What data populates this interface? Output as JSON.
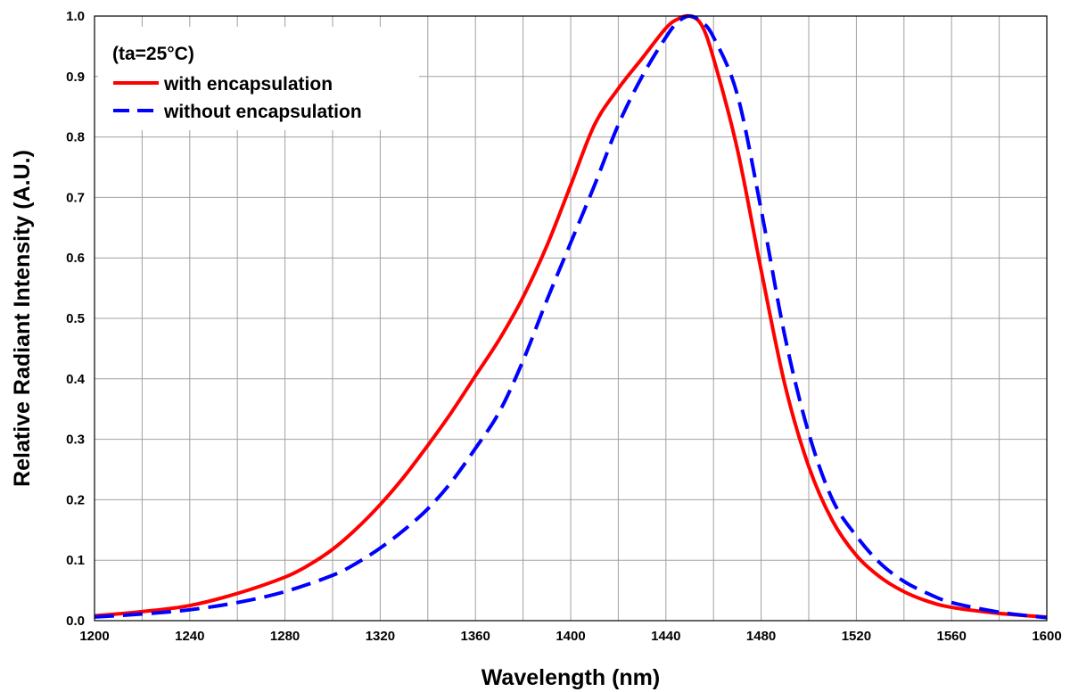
{
  "chart_data": {
    "type": "line",
    "title": "",
    "xlabel": "Wavelength (nm)",
    "ylabel": "Relative Radiant Intensity (A.U.)",
    "xlim": [
      1200,
      1600
    ],
    "ylim": [
      0,
      1.0
    ],
    "x_ticks": [
      "1200",
      "1240",
      "1280",
      "1320",
      "1360",
      "1400",
      "1440",
      "1480",
      "1520",
      "1560",
      "1600"
    ],
    "y_ticks": [
      "0.0",
      "0.1",
      "0.2",
      "0.3",
      "0.4",
      "0.5",
      "0.6",
      "0.7",
      "0.8",
      "0.9",
      "1.0"
    ],
    "grid": true,
    "legend": {
      "placement": "top-left",
      "note": "(ta=25°C)"
    },
    "series": [
      {
        "name": "with encapsulation",
        "color": "#ff0000",
        "style": "solid",
        "x": [
          1200,
          1220,
          1240,
          1260,
          1280,
          1290,
          1300,
          1310,
          1320,
          1330,
          1340,
          1350,
          1360,
          1370,
          1380,
          1390,
          1400,
          1410,
          1420,
          1430,
          1440,
          1445,
          1450,
          1455,
          1460,
          1470,
          1480,
          1490,
          1500,
          1510,
          1520,
          1530,
          1540,
          1550,
          1560,
          1580,
          1600
        ],
        "y": [
          0.008,
          0.015,
          0.025,
          0.045,
          0.072,
          0.092,
          0.118,
          0.152,
          0.192,
          0.238,
          0.29,
          0.345,
          0.405,
          0.465,
          0.535,
          0.62,
          0.72,
          0.82,
          0.88,
          0.93,
          0.98,
          0.995,
          1.0,
          0.985,
          0.93,
          0.78,
          0.58,
          0.39,
          0.255,
          0.165,
          0.108,
          0.072,
          0.048,
          0.032,
          0.022,
          0.012,
          0.006
        ]
      },
      {
        "name": "without encapsulation",
        "color": "#0000ff",
        "style": "dashed",
        "x": [
          1200,
          1220,
          1240,
          1260,
          1280,
          1300,
          1310,
          1320,
          1330,
          1340,
          1350,
          1360,
          1370,
          1380,
          1390,
          1400,
          1410,
          1420,
          1430,
          1440,
          1445,
          1450,
          1455,
          1460,
          1470,
          1480,
          1490,
          1500,
          1510,
          1520,
          1530,
          1540,
          1550,
          1560,
          1580,
          1600
        ],
        "y": [
          0.006,
          0.011,
          0.018,
          0.03,
          0.048,
          0.075,
          0.095,
          0.12,
          0.15,
          0.185,
          0.23,
          0.285,
          0.345,
          0.43,
          0.53,
          0.625,
          0.72,
          0.82,
          0.9,
          0.965,
          0.99,
          1.0,
          0.99,
          0.965,
          0.87,
          0.68,
          0.47,
          0.31,
          0.2,
          0.14,
          0.095,
          0.065,
          0.045,
          0.03,
          0.014,
          0.005
        ]
      }
    ]
  }
}
